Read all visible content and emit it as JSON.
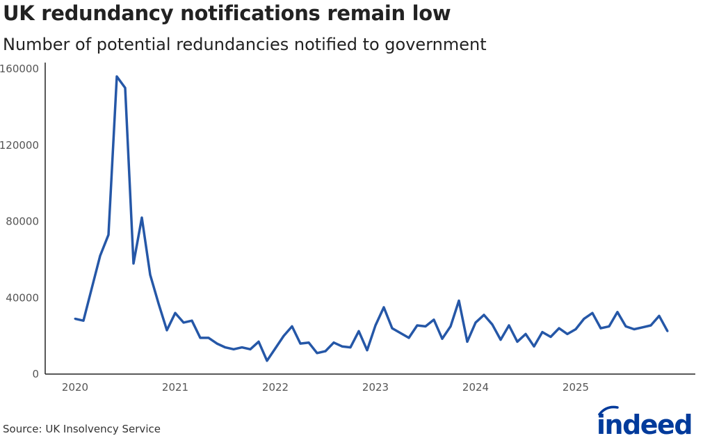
{
  "title": "UK redundancy notifications remain low",
  "subtitle": "Number of potential redundancies notified to government",
  "source": "Source: UK Insolvency Service",
  "logo_text": "indeed",
  "colors": {
    "line": "#2557a7",
    "logo": "#003a9b",
    "axis": "#222222",
    "text": "#555555"
  },
  "chart_data": {
    "type": "line",
    "title": "UK redundancy notifications remain low",
    "subtitle": "Number of potential redundancies notified to government",
    "xlabel": "",
    "ylabel": "",
    "ylim": [
      0,
      160000
    ],
    "yticks": [
      0,
      40000,
      80000,
      120000,
      160000
    ],
    "ytick_labels": [
      "0",
      "40000",
      "80000",
      "120000",
      "160000"
    ],
    "xticks": [
      "2020",
      "2021",
      "2022",
      "2023",
      "2024",
      "2025"
    ],
    "grid": false,
    "frequency": "monthly",
    "start": "2020-01",
    "series": [
      {
        "values": [
          29000,
          28000,
          45000,
          62000,
          73000,
          156000,
          150000,
          58000,
          82000,
          52000,
          37000,
          23000,
          32000,
          27000,
          28000,
          19000,
          19000,
          16000,
          14000,
          13000,
          14000,
          13000,
          17000,
          7000,
          13500,
          20000,
          25000,
          16000,
          16500,
          11000,
          12000,
          16500,
          14500,
          14000,
          22500,
          12500,
          25500,
          35000,
          24000,
          21500,
          19000,
          25500,
          25000,
          28500,
          18500,
          25000,
          38500,
          17000,
          27000,
          31000,
          26000,
          18000,
          25500,
          17000,
          21000,
          14500,
          22000,
          19500,
          24000,
          21000,
          23500,
          29000,
          32000,
          24000,
          25000,
          32500,
          25000,
          23500,
          24500,
          25500,
          30500,
          22500
        ]
      }
    ]
  }
}
